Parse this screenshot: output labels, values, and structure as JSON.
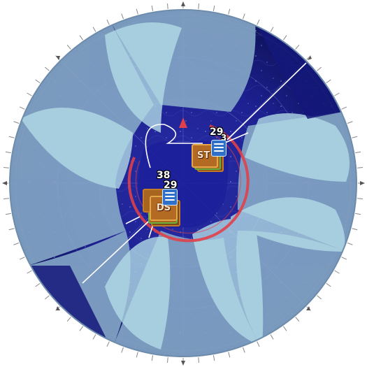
{
  "map": {
    "colors": {
      "space": "#1a1f8a",
      "space_deep": "#10135c",
      "rim": "#7fa2c4",
      "fog": "#a7cde0",
      "zone_ring": "#e0404a",
      "route": "#ffffff"
    },
    "compass_markers": [
      "north",
      "east",
      "south",
      "west",
      "northeast",
      "southeast",
      "southwest",
      "northwest"
    ]
  },
  "fleets": [
    {
      "id": "fleet-upper",
      "count_top": "29",
      "count_side": "3",
      "unit_code": "ST",
      "stack_icon": "wave-stack-icon"
    },
    {
      "id": "fleet-lower",
      "count_top": "38",
      "count_side": "29",
      "unit_code": "DS",
      "stack_icon": "wave-stack-icon"
    }
  ]
}
